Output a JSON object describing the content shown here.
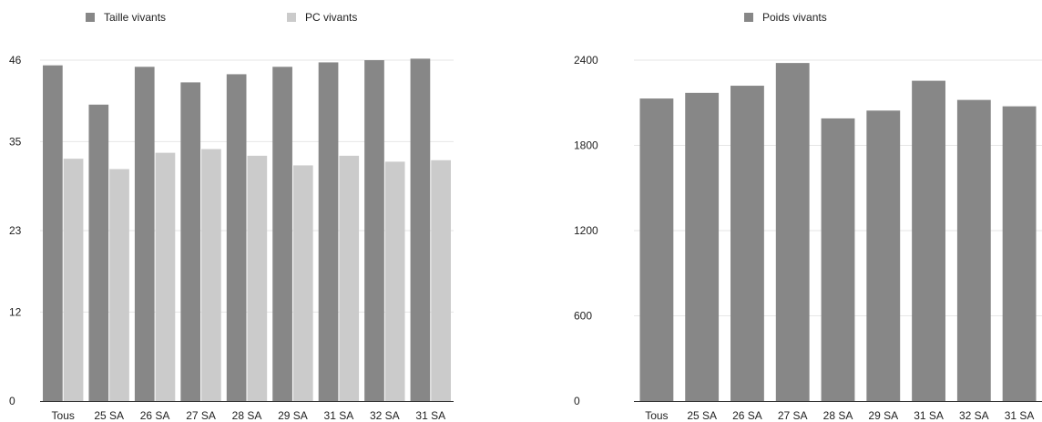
{
  "chart_data": [
    {
      "type": "bar",
      "categories": [
        "Tous",
        "25 SA",
        "26 SA",
        "27 SA",
        "28 SA",
        "29 SA",
        "31 SA",
        "32 SA",
        "31 SA"
      ],
      "series": [
        {
          "name": "Taille vivants",
          "color": "#878787",
          "values": [
            45.3,
            40.0,
            45.1,
            43.0,
            44.1,
            45.1,
            45.7,
            46.0,
            46.2
          ]
        },
        {
          "name": "PC vivants",
          "color": "#cbcbcb",
          "values": [
            32.7,
            31.3,
            33.5,
            34.0,
            33.1,
            31.8,
            33.1,
            32.3,
            32.5
          ]
        }
      ],
      "yticks": [
        0,
        12,
        23,
        35,
        46
      ],
      "ylim": [
        0,
        46
      ],
      "legend": "top",
      "grid": true
    },
    {
      "type": "bar",
      "categories": [
        "Tous",
        "25 SA",
        "26 SA",
        "27 SA",
        "28 SA",
        "29 SA",
        "31 SA",
        "32 SA",
        "31 SA"
      ],
      "series": [
        {
          "name": "Poids vivants",
          "color": "#878787",
          "values": [
            2130,
            2170,
            2220,
            2380,
            1990,
            2045,
            2255,
            2120,
            2075
          ]
        }
      ],
      "yticks": [
        0,
        600,
        1200,
        1800,
        2400
      ],
      "ylim": [
        0,
        2400
      ],
      "legend": "top",
      "grid": true
    }
  ]
}
